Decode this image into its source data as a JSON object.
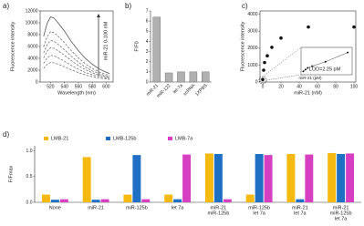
{
  "chart_data": [
    {
      "type": "line",
      "panel_label": "a)",
      "xlabel": "Wavelength (nm)",
      "ylabel": "Fluorescence intensity",
      "annotation": "miR-21 0-100 nM",
      "x": [
        510,
        515,
        520,
        525,
        530,
        540,
        550,
        560,
        570,
        580,
        590,
        600,
        605
      ],
      "series": [
        {
          "color": "#555555",
          "dashed": false,
          "values": [
            7700,
            9900,
            11000,
            10800,
            10100,
            8600,
            6800,
            5300,
            4000,
            3000,
            2200,
            1650,
            1430
          ]
        },
        {
          "color": "#777777",
          "dashed": true,
          "values": [
            5950,
            7650,
            8500,
            8330,
            7820,
            6630,
            5270,
            4080,
            3060,
            2300,
            1700,
            1280,
            1110
          ]
        },
        {
          "color": "#777777",
          "dashed": true,
          "values": [
            4900,
            6300,
            7000,
            6860,
            6440,
            5460,
            4340,
            3360,
            2520,
            1890,
            1400,
            1050,
            910
          ]
        },
        {
          "color": "#777777",
          "dashed": true,
          "values": [
            4060,
            5220,
            5800,
            5680,
            5340,
            4520,
            3600,
            2780,
            2090,
            1570,
            1160,
            870,
            750
          ]
        },
        {
          "color": "#777777",
          "dashed": true,
          "values": [
            3150,
            4050,
            4500,
            4410,
            4140,
            3510,
            2790,
            2160,
            1620,
            1220,
            900,
            680,
            590
          ]
        },
        {
          "color": "#777777",
          "dashed": true,
          "values": [
            2310,
            2970,
            3300,
            3230,
            3040,
            2570,
            2050,
            1580,
            1190,
            890,
            660,
            500,
            430
          ]
        }
      ],
      "xlim": [
        505,
        610
      ],
      "xticks": [
        520,
        540,
        560,
        580,
        600
      ],
      "ylim": [
        0,
        12000
      ],
      "yticks": [
        0,
        2000,
        4000,
        6000,
        8000,
        10000,
        12000
      ]
    },
    {
      "type": "bar",
      "panel_label": "b)",
      "ylabel": "F/F0",
      "categories": [
        "miR-21",
        "miR-122",
        "let-7a",
        "scRNA",
        "1XPBS"
      ],
      "values": [
        6.4,
        0.9,
        1.0,
        1.0,
        1.0
      ],
      "color": "#b0b0b0",
      "ylim": [
        0,
        7
      ],
      "yticks": [
        0,
        1,
        2,
        3,
        4,
        5,
        6,
        7
      ]
    },
    {
      "type": "scatter",
      "panel_label": "c)",
      "xlabel": "miR-21 (nM)",
      "ylabel": "Fluorescence intensity",
      "x": [
        0,
        1,
        2,
        5,
        10,
        20,
        50,
        100
      ],
      "values": [
        150,
        700,
        1150,
        1550,
        2050,
        2600,
        3250,
        3250
      ],
      "color": "#111111",
      "xlim": [
        -3,
        102
      ],
      "xticks": [
        0,
        20,
        40,
        60,
        80,
        100
      ],
      "ylim": [
        0,
        4200
      ],
      "yticks": [
        0,
        1000,
        2000,
        3000,
        4000
      ],
      "inset": {
        "text": "LOD=2.25 pM",
        "xlabel": "miR-21 (pM)",
        "x": [
          0,
          5,
          10,
          20,
          50,
          100
        ],
        "values": [
          100,
          150,
          200,
          250,
          380,
          650
        ],
        "xlim": [
          -5,
          110
        ],
        "ylim": [
          0,
          800
        ]
      }
    },
    {
      "type": "grouped-bar",
      "panel_label": "d)",
      "ylabel": "F/Fmax",
      "categories": [
        [
          "None"
        ],
        [
          "miR-21"
        ],
        [
          "miR-125b"
        ],
        [
          "let 7a"
        ],
        [
          "miR-21",
          "miR-125b"
        ],
        [
          "miR-125b",
          "let 7a"
        ],
        [
          "miR-21",
          "let 7a"
        ],
        [
          "miR-21",
          "miR-125b",
          "let 7a"
        ]
      ],
      "series": [
        {
          "name": "LMB-21",
          "color": "#f5b90f",
          "values": [
            0.15,
            0.88,
            0.15,
            0.15,
            0.95,
            0.15,
            0.94,
            0.96
          ]
        },
        {
          "name": "LMB-125b",
          "color": "#1f6fc5",
          "values": [
            0.05,
            0.05,
            0.92,
            0.06,
            0.94,
            0.94,
            0.06,
            0.94
          ]
        },
        {
          "name": "LMB-7a",
          "color": "#d63fc0",
          "values": [
            0.06,
            0.06,
            0.06,
            0.93,
            0.06,
            0.92,
            0.93,
            0.95
          ]
        }
      ],
      "ylim": [
        0,
        1.1
      ],
      "yticks": [
        {
          "value": 0,
          "label": "0.0"
        },
        {
          "value": 0.5,
          "label": "0.5"
        },
        {
          "value": 1,
          "label": "1.0"
        }
      ]
    }
  ]
}
